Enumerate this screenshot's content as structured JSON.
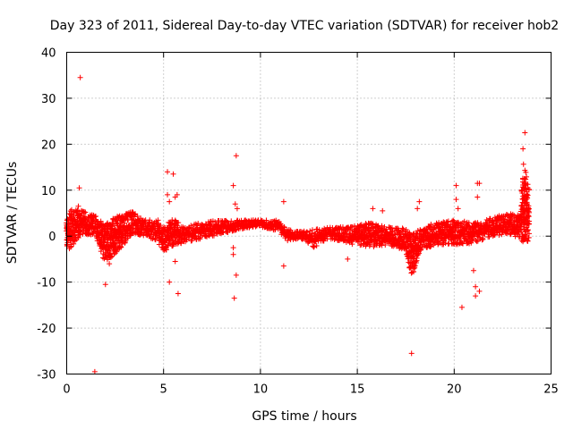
{
  "chart_data": {
    "type": "scatter",
    "title": "Day 323 of 2011, Sidereal Day-to-day VTEC variation (SDTVAR) for receiver hob2",
    "xlabel": "GPS time / hours",
    "ylabel": "SDTVAR / TECUs",
    "xlim": [
      0,
      25
    ],
    "ylim": [
      -30,
      40
    ],
    "xticks": [
      0,
      5,
      10,
      15,
      20,
      25
    ],
    "yticks": [
      -30,
      -20,
      -10,
      0,
      10,
      20,
      30,
      40
    ],
    "grid": true,
    "marker": "+",
    "color": "#ff0000",
    "band_envelope": [
      {
        "x": 0.0,
        "lo": -3.5,
        "hi": 4.5
      },
      {
        "x": 0.3,
        "lo": -2.0,
        "hi": 6.0
      },
      {
        "x": 0.8,
        "lo": 0.5,
        "hi": 5.5
      },
      {
        "x": 1.5,
        "lo": 0.0,
        "hi": 4.5
      },
      {
        "x": 1.9,
        "lo": -5.5,
        "hi": 2.5
      },
      {
        "x": 2.4,
        "lo": -4.5,
        "hi": 4.0
      },
      {
        "x": 3.0,
        "lo": -1.5,
        "hi": 5.0
      },
      {
        "x": 3.4,
        "lo": 0.5,
        "hi": 5.5
      },
      {
        "x": 4.0,
        "lo": 0.0,
        "hi": 3.5
      },
      {
        "x": 4.7,
        "lo": -1.0,
        "hi": 3.5
      },
      {
        "x": 5.0,
        "lo": -3.5,
        "hi": 2.0
      },
      {
        "x": 5.5,
        "lo": -2.0,
        "hi": 4.0
      },
      {
        "x": 6.0,
        "lo": -1.5,
        "hi": 2.0
      },
      {
        "x": 7.0,
        "lo": -0.5,
        "hi": 3.0
      },
      {
        "x": 8.0,
        "lo": 0.5,
        "hi": 3.5
      },
      {
        "x": 9.0,
        "lo": 1.5,
        "hi": 3.5
      },
      {
        "x": 10.0,
        "lo": 2.0,
        "hi": 3.5
      },
      {
        "x": 10.9,
        "lo": 1.0,
        "hi": 3.5
      },
      {
        "x": 11.4,
        "lo": -1.0,
        "hi": 1.5
      },
      {
        "x": 12.0,
        "lo": -0.5,
        "hi": 1.0
      },
      {
        "x": 12.8,
        "lo": -2.5,
        "hi": 1.5
      },
      {
        "x": 13.5,
        "lo": -0.5,
        "hi": 2.0
      },
      {
        "x": 14.5,
        "lo": -1.5,
        "hi": 2.0
      },
      {
        "x": 15.5,
        "lo": -2.5,
        "hi": 3.0
      },
      {
        "x": 16.5,
        "lo": -2.0,
        "hi": 2.0
      },
      {
        "x": 17.5,
        "lo": -3.0,
        "hi": 2.0
      },
      {
        "x": 17.8,
        "lo": -9.0,
        "hi": 0.5
      },
      {
        "x": 18.3,
        "lo": -3.0,
        "hi": 1.5
      },
      {
        "x": 19.0,
        "lo": -2.0,
        "hi": 3.0
      },
      {
        "x": 20.0,
        "lo": -2.0,
        "hi": 3.5
      },
      {
        "x": 21.0,
        "lo": -1.5,
        "hi": 3.0
      },
      {
        "x": 22.0,
        "lo": 0.0,
        "hi": 4.0
      },
      {
        "x": 22.8,
        "lo": 0.5,
        "hi": 5.0
      },
      {
        "x": 23.4,
        "lo": -0.5,
        "hi": 4.5
      },
      {
        "x": 23.6,
        "lo": -1.5,
        "hi": 16.0
      },
      {
        "x": 23.9,
        "lo": -1.0,
        "hi": 10.0
      }
    ],
    "outliers": [
      [
        0.7,
        34.5
      ],
      [
        0.65,
        10.5
      ],
      [
        0.6,
        6.5
      ],
      [
        1.45,
        -29.5
      ],
      [
        2.0,
        -10.5
      ],
      [
        2.2,
        -6.0
      ],
      [
        5.2,
        14.0
      ],
      [
        5.5,
        13.5
      ],
      [
        5.2,
        9.0
      ],
      [
        5.3,
        7.5
      ],
      [
        5.6,
        8.5
      ],
      [
        5.7,
        9.0
      ],
      [
        5.3,
        -10.0
      ],
      [
        5.6,
        -5.5
      ],
      [
        5.75,
        -12.5
      ],
      [
        8.6,
        11.0
      ],
      [
        8.7,
        7.0
      ],
      [
        8.8,
        6.0
      ],
      [
        8.75,
        17.5
      ],
      [
        8.6,
        -2.5
      ],
      [
        8.6,
        -4.0
      ],
      [
        8.75,
        -8.5
      ],
      [
        8.65,
        -13.5
      ],
      [
        11.2,
        7.5
      ],
      [
        11.2,
        -6.5
      ],
      [
        14.5,
        -5.0
      ],
      [
        15.8,
        6.0
      ],
      [
        16.3,
        5.5
      ],
      [
        17.8,
        -25.5
      ],
      [
        18.2,
        7.5
      ],
      [
        18.1,
        6.0
      ],
      [
        20.1,
        11.0
      ],
      [
        20.1,
        8.0
      ],
      [
        20.2,
        6.0
      ],
      [
        20.4,
        -15.5
      ],
      [
        21.0,
        -7.5
      ],
      [
        21.1,
        -11.0
      ],
      [
        21.1,
        -13.0
      ],
      [
        21.3,
        -12.0
      ],
      [
        21.2,
        11.5
      ],
      [
        21.3,
        11.5
      ],
      [
        21.2,
        8.5
      ],
      [
        23.65,
        22.5
      ],
      [
        23.55,
        19.0
      ]
    ]
  }
}
